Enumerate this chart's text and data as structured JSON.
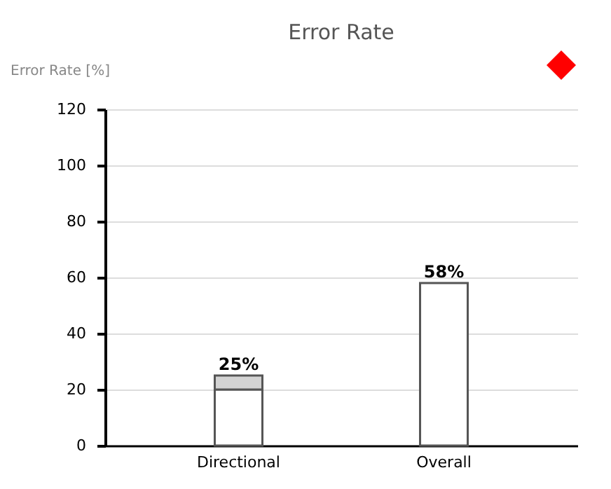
{
  "chart_data": {
    "type": "bar",
    "title": "Error Rate",
    "ylabel": "Error Rate [%]",
    "categories": [
      "Directional",
      "Overall"
    ],
    "stacked": true,
    "series": [
      {
        "color": "#ffffff",
        "values": [
          20,
          58
        ]
      },
      {
        "color": "#d3d3d3",
        "values": [
          5,
          null
        ]
      }
    ],
    "totals": [
      "25%",
      "58%"
    ],
    "ylim": [
      0,
      120
    ],
    "yticks": [
      0,
      20,
      40,
      60,
      80,
      100,
      120
    ],
    "grid": "y"
  }
}
